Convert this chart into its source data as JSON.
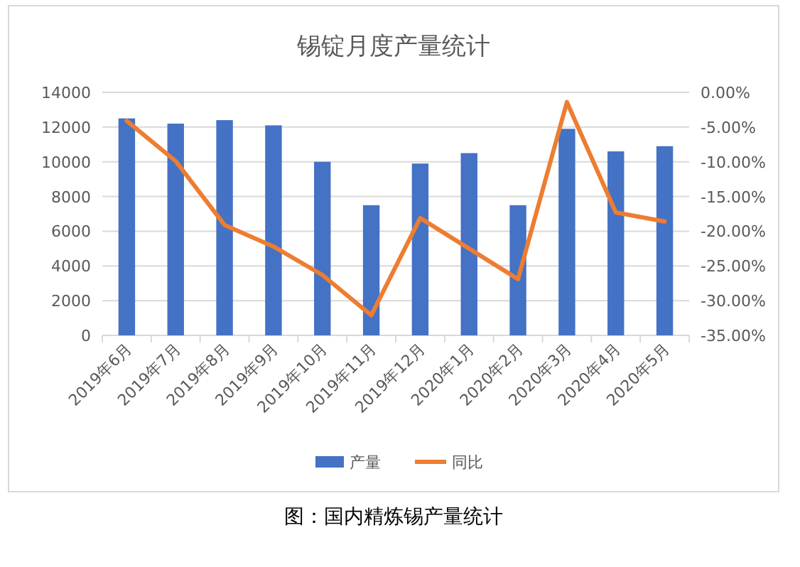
{
  "chart_data": {
    "type": "bar",
    "title": "锡锭月度产量统计",
    "categories": [
      "2019年6月",
      "2019年7月",
      "2019年8月",
      "2019年9月",
      "2019年10月",
      "2019年11月",
      "2019年12月",
      "2020年1月",
      "2020年2月",
      "2020年3月",
      "2020年4月",
      "2020年5月"
    ],
    "series": [
      {
        "name": "产量",
        "color": "#4472c4",
        "values": [
          12500,
          12200,
          12400,
          12100,
          10000,
          7500,
          9900,
          10500,
          7500,
          11900,
          10600,
          10900
        ]
      },
      {
        "name": "同比",
        "type": "line",
        "axis": "y2",
        "color": "#ed7d31",
        "values": [
          -4.1,
          -9.9,
          -19.1,
          -22.2,
          -26.3,
          -32.1,
          -18.1,
          -22.5,
          -26.9,
          -1.4,
          -17.3,
          -18.6
        ]
      }
    ],
    "ylim": [
      0,
      14000
    ],
    "yticks": [
      0,
      2000,
      4000,
      6000,
      8000,
      10000,
      12000,
      14000
    ],
    "y2lim": [
      -35,
      0
    ],
    "y2ticks": [
      {
        "value": 0,
        "label": "0.00%"
      },
      {
        "value": -5,
        "label": "-5.00%"
      },
      {
        "value": -10,
        "label": "-10.00%"
      },
      {
        "value": -15,
        "label": "-15.00%"
      },
      {
        "value": -20,
        "label": "-20.00%"
      },
      {
        "value": -25,
        "label": "-25.00%"
      },
      {
        "value": -30,
        "label": "-30.00%"
      },
      {
        "value": -35,
        "label": "-35.00%"
      }
    ],
    "grid": "y",
    "legend": "bottom",
    "annotations": [
      "图：国内精炼锡产量统计"
    ]
  }
}
